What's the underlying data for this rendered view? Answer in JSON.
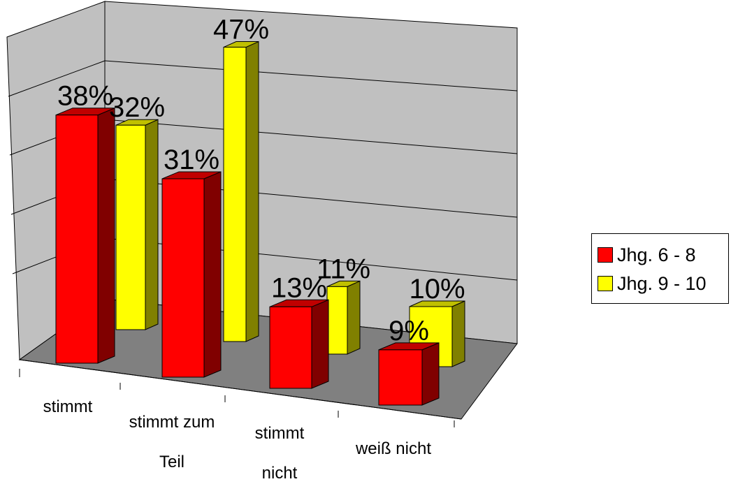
{
  "chart_data": {
    "type": "bar",
    "categories": [
      [
        "stimmt"
      ],
      [
        "stimmt zum",
        "Teil"
      ],
      [
        "stimmt",
        "nicht"
      ],
      [
        "weiß nicht"
      ]
    ],
    "series": [
      {
        "name": "Jhg. 6 - 8",
        "values": [
          38,
          31,
          13,
          9
        ],
        "labels": [
          "38%",
          "31%",
          "13%",
          "9%"
        ]
      },
      {
        "name": "Jhg. 9 - 10",
        "values": [
          32,
          47,
          11,
          10
        ],
        "labels": [
          "32%",
          "47%",
          "11%",
          "10%"
        ]
      }
    ],
    "ylim": [
      0,
      50
    ],
    "grid": true,
    "legend_position": "right",
    "colors": {
      "series1_front": "#ff0000",
      "series1_top": "#c00000",
      "series1_side": "#800000",
      "series2_front": "#ffff00",
      "series2_top": "#c0c000",
      "series2_side": "#808000",
      "back_wall": "#c0c0c0",
      "side_wall": "#c0c0c0",
      "floor": "#808080",
      "grid": "#000000"
    }
  }
}
